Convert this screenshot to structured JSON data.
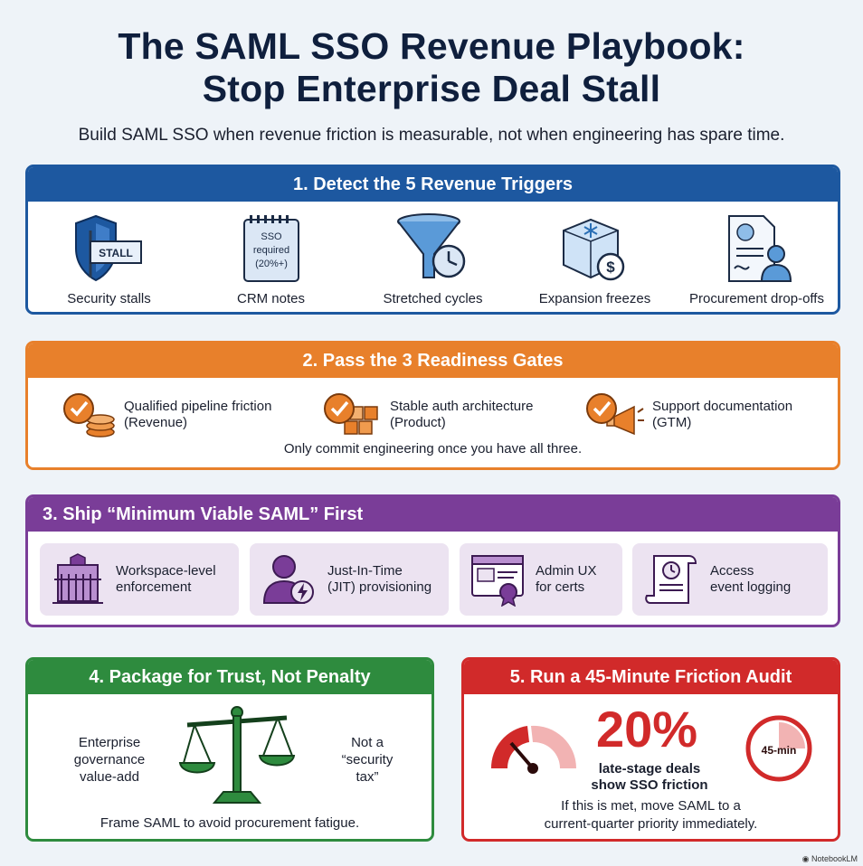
{
  "header": {
    "title_line1": "The SAML SSO Revenue Playbook:",
    "title_line2": "Stop Enterprise Deal Stall",
    "subtitle": "Build SAML SSO when revenue friction is measurable, not when engineering has spare time."
  },
  "section1": {
    "title": "1. Detect the 5 Revenue Triggers",
    "items": [
      {
        "label": "Security stalls",
        "icon": "shield-stall-icon",
        "sign_text": "STALL"
      },
      {
        "label": "CRM notes",
        "icon": "notepad-icon",
        "note_lines": [
          "SSO",
          "required",
          "(20%+)"
        ]
      },
      {
        "label": "Stretched cycles",
        "icon": "funnel-clock-icon"
      },
      {
        "label": "Expansion freezes",
        "icon": "ice-cube-dollar-icon"
      },
      {
        "label": "Procurement drop-offs",
        "icon": "contract-person-icon"
      }
    ]
  },
  "section2": {
    "title": "2. Pass the 3 Readiness Gates",
    "gates": [
      {
        "line1": "Qualified pipeline friction",
        "line2": "(Revenue)",
        "icon": "check-coins-icon"
      },
      {
        "line1": "Stable auth architecture",
        "line2": "(Product)",
        "icon": "check-blocks-icon"
      },
      {
        "line1": "Support documentation",
        "line2": "(GTM)",
        "icon": "check-megaphone-icon"
      }
    ],
    "note": "Only commit engineering once you have all three."
  },
  "section3": {
    "title": "3. Ship “Minimum Viable SAML” First",
    "cards": [
      {
        "line1": "Workspace-level",
        "line2": "enforcement",
        "icon": "building-gate-icon"
      },
      {
        "line1": "Just-In-Time",
        "line2": "(JIT) provisioning",
        "icon": "user-lightning-icon"
      },
      {
        "line1": "Admin UX",
        "line2": "for certs",
        "icon": "browser-certificate-icon"
      },
      {
        "line1": "Access",
        "line2": "event logging",
        "icon": "log-scroll-clock-icon"
      }
    ]
  },
  "section4": {
    "title": "4. Package for Trust, Not Penalty",
    "left_text": [
      "Enterprise",
      "governance",
      "value-add"
    ],
    "right_text": [
      "Not a",
      "“security",
      "tax”"
    ],
    "note": "Frame SAML to avoid procurement fatigue.",
    "icon": "balance-scale-icon"
  },
  "section5": {
    "title": "5. Run a 45-Minute Friction Audit",
    "stat": "20%",
    "stat_caption": [
      "late-stage deals",
      "show SSO friction"
    ],
    "timer_label": "45-min",
    "note": [
      "If this is met, move SAML to a",
      "current-quarter priority immediately."
    ],
    "icons": [
      "gauge-icon",
      "stopwatch-icon"
    ]
  },
  "footer": {
    "brand": "NotebookLM"
  },
  "colors": {
    "blue": "#1d58a0",
    "orange": "#e8802b",
    "purple": "#7a3d98",
    "green": "#2e8b3e",
    "red": "#d12a2a"
  }
}
